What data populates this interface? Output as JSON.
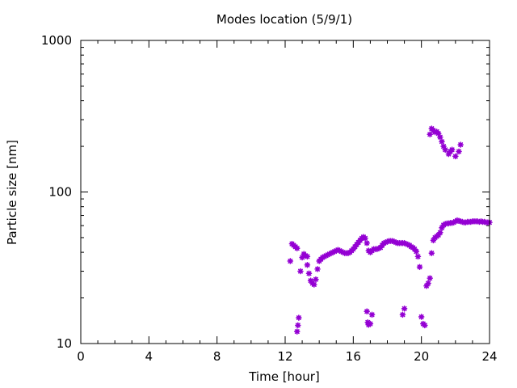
{
  "chart_data": {
    "type": "scatter",
    "title": "Modes location (5/9/1)",
    "xlabel": "Time [hour]",
    "ylabel": "Particle size [nm]",
    "xlim": [
      0,
      24
    ],
    "ylim": [
      10,
      1000
    ],
    "yscale": "log",
    "grid": false,
    "xticks": [
      0,
      4,
      8,
      12,
      16,
      20,
      24
    ],
    "xtick_labels": [
      "0",
      "4",
      "8",
      "12",
      "16",
      "20",
      "24"
    ],
    "yticks": [
      10,
      100,
      1000
    ],
    "ytick_labels": [
      "10",
      "100",
      "1000"
    ],
    "colors": {
      "points": "#9400d3",
      "axes": "#000000",
      "background": "#ffffff"
    },
    "marker": "asterisk",
    "series": [
      {
        "points": [
          [
            12.3,
            35
          ],
          [
            12.4,
            45.5
          ],
          [
            12.5,
            44.5
          ],
          [
            12.6,
            43.5
          ],
          [
            12.7,
            42.5
          ],
          [
            12.9,
            30
          ],
          [
            13.0,
            37
          ],
          [
            13.1,
            39
          ],
          [
            13.2,
            38
          ],
          [
            13.3,
            37.5
          ],
          [
            13.3,
            33
          ],
          [
            13.4,
            29
          ],
          [
            13.5,
            26
          ],
          [
            13.6,
            25
          ],
          [
            13.7,
            24.5
          ],
          [
            13.8,
            26.5
          ],
          [
            13.9,
            31
          ],
          [
            14.0,
            35
          ],
          [
            14.1,
            36
          ],
          [
            14.2,
            37
          ],
          [
            14.3,
            37.5
          ],
          [
            14.4,
            38
          ],
          [
            14.5,
            38.5
          ],
          [
            14.6,
            39
          ],
          [
            14.7,
            39.5
          ],
          [
            14.8,
            40
          ],
          [
            14.9,
            40.5
          ],
          [
            15.0,
            41
          ],
          [
            15.1,
            41.5
          ],
          [
            15.2,
            41
          ],
          [
            15.3,
            40.5
          ],
          [
            15.4,
            40
          ],
          [
            15.5,
            39.5
          ],
          [
            15.6,
            39.5
          ],
          [
            15.7,
            39.5
          ],
          [
            15.8,
            40
          ],
          [
            15.9,
            41
          ],
          [
            16.0,
            42
          ],
          [
            16.1,
            43.5
          ],
          [
            16.2,
            45
          ],
          [
            16.3,
            46.5
          ],
          [
            16.4,
            48
          ],
          [
            16.5,
            49.5
          ],
          [
            16.6,
            50.5
          ],
          [
            16.7,
            49.5
          ],
          [
            16.8,
            46
          ],
          [
            16.9,
            41
          ],
          [
            17.0,
            40
          ],
          [
            17.1,
            41
          ],
          [
            17.2,
            42
          ],
          [
            17.3,
            42
          ],
          [
            17.4,
            42
          ],
          [
            17.5,
            42.5
          ],
          [
            17.6,
            43
          ],
          [
            17.7,
            44.5
          ],
          [
            17.8,
            46
          ],
          [
            17.9,
            46.5
          ],
          [
            18.0,
            47
          ],
          [
            18.1,
            47.5
          ],
          [
            18.2,
            47.5
          ],
          [
            18.3,
            47.5
          ],
          [
            18.4,
            47
          ],
          [
            18.5,
            46.5
          ],
          [
            18.6,
            46
          ],
          [
            18.7,
            46
          ],
          [
            18.8,
            46
          ],
          [
            18.9,
            46
          ],
          [
            19.0,
            46
          ],
          [
            19.1,
            45.5
          ],
          [
            19.2,
            45
          ],
          [
            19.3,
            44.5
          ],
          [
            19.4,
            43.5
          ],
          [
            19.5,
            43
          ],
          [
            19.6,
            42
          ],
          [
            19.7,
            40.5
          ],
          [
            19.8,
            37.5
          ],
          [
            19.9,
            32
          ],
          [
            20.3,
            24
          ],
          [
            20.4,
            25
          ],
          [
            20.5,
            27
          ],
          [
            20.6,
            39.5
          ],
          [
            20.7,
            48
          ],
          [
            20.8,
            50
          ],
          [
            20.9,
            51
          ],
          [
            21.0,
            52
          ],
          [
            21.1,
            54
          ],
          [
            21.2,
            58
          ],
          [
            21.3,
            60.5
          ],
          [
            21.4,
            61.5
          ],
          [
            21.5,
            62
          ],
          [
            21.6,
            62
          ],
          [
            21.7,
            62.5
          ],
          [
            21.8,
            62.5
          ],
          [
            21.9,
            63
          ],
          [
            22.0,
            64
          ],
          [
            22.1,
            65
          ],
          [
            22.2,
            64.5
          ],
          [
            22.3,
            64
          ],
          [
            22.4,
            63.5
          ],
          [
            22.5,
            63
          ],
          [
            22.6,
            63
          ],
          [
            22.7,
            63.5
          ],
          [
            22.8,
            63.5
          ],
          [
            22.9,
            63.5
          ],
          [
            23.0,
            64
          ],
          [
            23.1,
            64
          ],
          [
            23.2,
            64
          ],
          [
            23.3,
            64
          ],
          [
            23.4,
            63.5
          ],
          [
            23.5,
            64
          ],
          [
            23.6,
            63.5
          ],
          [
            23.7,
            63.5
          ],
          [
            23.8,
            63
          ],
          [
            23.9,
            63
          ],
          [
            24.0,
            63
          ],
          [
            20.5,
            240
          ],
          [
            20.6,
            262
          ],
          [
            20.7,
            255
          ],
          [
            20.8,
            248
          ],
          [
            20.9,
            250
          ],
          [
            21.0,
            243
          ],
          [
            21.1,
            230
          ],
          [
            21.2,
            215
          ],
          [
            21.3,
            200
          ],
          [
            21.4,
            190
          ],
          [
            21.6,
            178
          ],
          [
            21.7,
            185
          ],
          [
            21.8,
            190
          ],
          [
            22.0,
            172
          ],
          [
            22.2,
            185
          ],
          [
            22.3,
            205
          ],
          [
            12.7,
            12
          ],
          [
            12.75,
            13.2
          ],
          [
            12.8,
            14.8
          ],
          [
            16.8,
            16.3
          ],
          [
            16.85,
            13.8
          ],
          [
            16.9,
            13.3
          ],
          [
            17.0,
            13.5
          ],
          [
            17.1,
            15.5
          ],
          [
            18.9,
            15.5
          ],
          [
            19.0,
            17
          ],
          [
            20.0,
            15
          ],
          [
            20.1,
            13.5
          ],
          [
            20.2,
            13.2
          ]
        ]
      }
    ]
  }
}
